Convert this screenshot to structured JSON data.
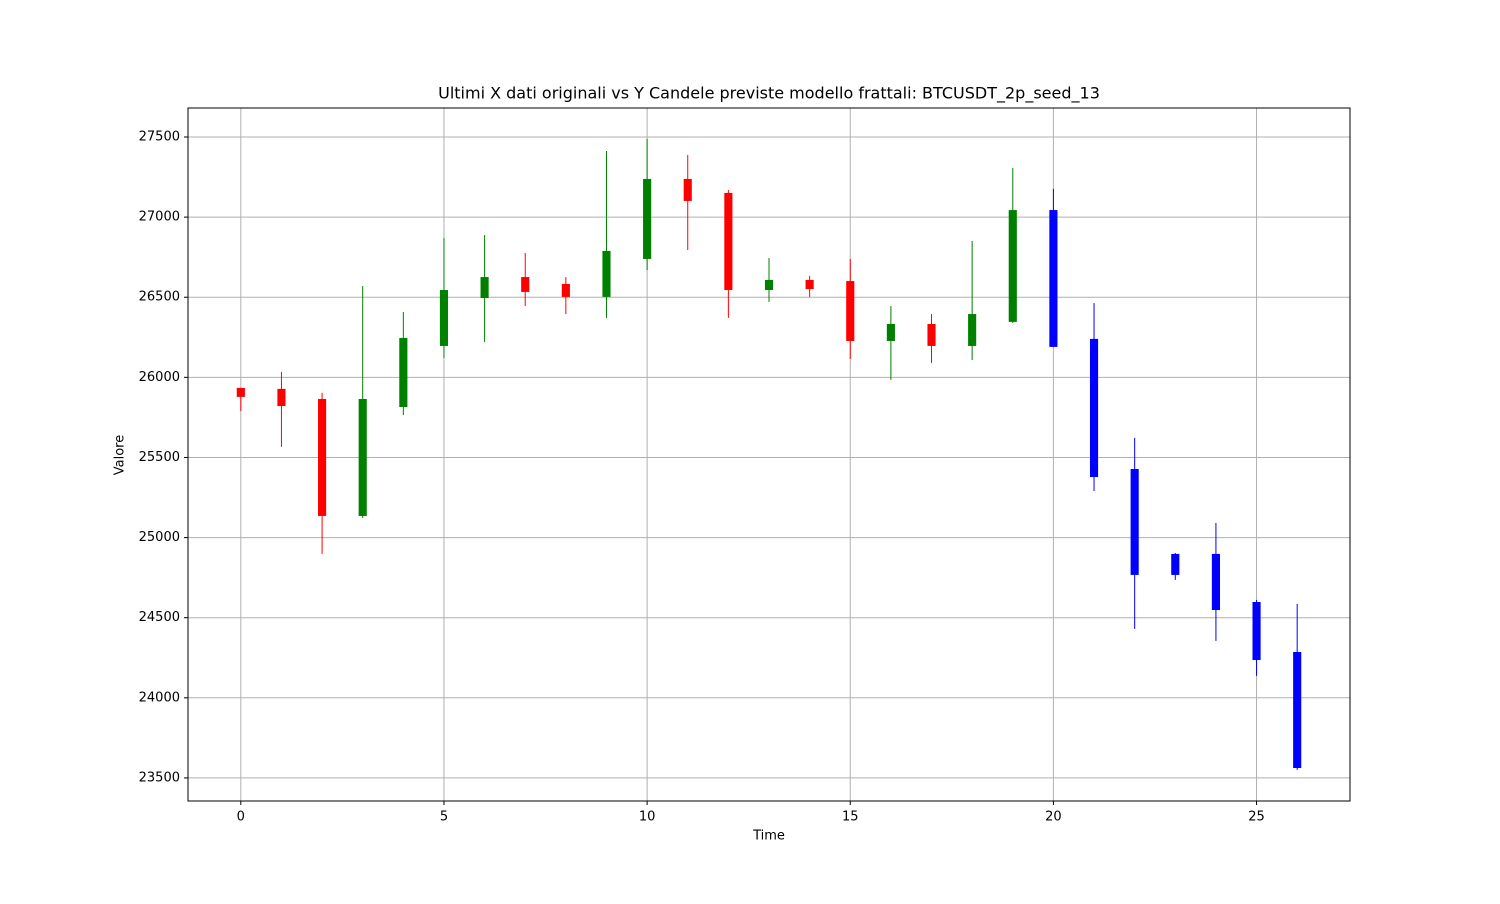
{
  "chart_data": {
    "type": "candlestick",
    "title": "Ultimi X dati originali vs Y Candele previste modello frattali: BTCUSDT_2p_seed_13",
    "xlabel": "Time",
    "ylabel": "Valore",
    "x": [
      0,
      1,
      2,
      3,
      4,
      5,
      6,
      7,
      8,
      9,
      10,
      11,
      12,
      13,
      14,
      15,
      16,
      17,
      18,
      19,
      20,
      21,
      22,
      23,
      24,
      25,
      26
    ],
    "open": [
      25934,
      25928,
      25865,
      25135,
      25815,
      26196,
      26495,
      26626,
      26583,
      26502,
      26739,
      27238,
      27151,
      26545,
      26608,
      26601,
      26227,
      26333,
      26196,
      26346,
      27044,
      26240,
      25428,
      24898,
      24898,
      24598,
      24286
    ],
    "high": [
      25935,
      26034,
      25903,
      26570,
      26408,
      26870,
      26888,
      26776,
      26626,
      27413,
      27488,
      27388,
      27169,
      26745,
      26633,
      26739,
      26445,
      26395,
      26851,
      27307,
      27176,
      26464,
      25622,
      24904,
      25091,
      24611,
      24586
    ],
    "low": [
      25790,
      25566,
      24898,
      25122,
      25765,
      26121,
      26221,
      26445,
      26395,
      26371,
      26670,
      26795,
      26371,
      26470,
      26502,
      26115,
      25984,
      26090,
      26108,
      26339,
      26190,
      25291,
      24430,
      24736,
      24355,
      24137,
      23550
    ],
    "close": [
      25878,
      25821,
      25135,
      25865,
      26246,
      26545,
      26626,
      26533,
      26502,
      26789,
      27238,
      27101,
      26545,
      26608,
      26551,
      26227,
      26333,
      26196,
      26395,
      27044,
      26190,
      25378,
      24767,
      24767,
      24548,
      24236,
      23562
    ],
    "colors": [
      "red",
      "red",
      "red",
      "green",
      "green",
      "green",
      "green",
      "red",
      "red",
      "green",
      "green",
      "red",
      "red",
      "green",
      "red",
      "red",
      "green",
      "red",
      "green",
      "green",
      "blue",
      "blue",
      "blue",
      "blue",
      "blue",
      "blue",
      "blue"
    ],
    "xlim": [
      -1.3,
      27.3
    ],
    "ylim": [
      23356,
      27681
    ],
    "xticks": [
      0,
      5,
      10,
      15,
      20,
      25
    ],
    "yticks": [
      23500,
      24000,
      24500,
      25000,
      25500,
      26000,
      26500,
      27000,
      27500
    ],
    "grid": true
  }
}
